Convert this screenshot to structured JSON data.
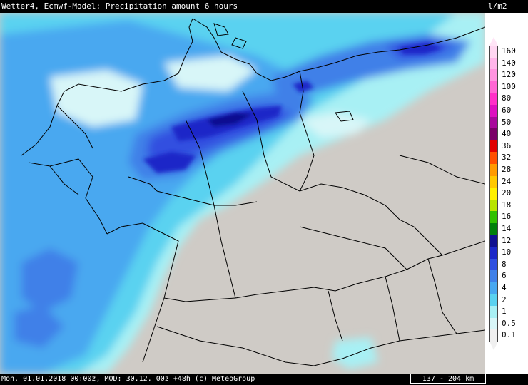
{
  "header": {
    "title": "Wetter4, Ecmwf-Model: Precipitation amount 6 hours",
    "unit": "l/m2"
  },
  "footer": {
    "info": "Mon, 01.01.2018 00:00z, MOD: 30.12. 00z +48h (c) MeteoGroup",
    "scale": "137 - 204 km"
  },
  "legend": {
    "levels": [
      {
        "label": "160",
        "color": "#ffd6f2"
      },
      {
        "label": "140",
        "color": "#ffb5ea"
      },
      {
        "label": "120",
        "color": "#ff94e0"
      },
      {
        "label": "100",
        "color": "#ff66d4"
      },
      {
        "label": "80",
        "color": "#ff30c8"
      },
      {
        "label": "60",
        "color": "#dd10c0"
      },
      {
        "label": "50",
        "color": "#a8089c"
      },
      {
        "label": "40",
        "color": "#7a0068"
      },
      {
        "label": "36",
        "color": "#e00000"
      },
      {
        "label": "32",
        "color": "#ff5000"
      },
      {
        "label": "28",
        "color": "#ff9a00"
      },
      {
        "label": "24",
        "color": "#ffc800"
      },
      {
        "label": "20",
        "color": "#fff000"
      },
      {
        "label": "18",
        "color": "#b8e400"
      },
      {
        "label": "16",
        "color": "#30c000"
      },
      {
        "label": "14",
        "color": "#00800a"
      },
      {
        "label": "12",
        "color": "#101090"
      },
      {
        "label": "10",
        "color": "#1c28c8"
      },
      {
        "label": "8",
        "color": "#3050e0"
      },
      {
        "label": "6",
        "color": "#4080e8"
      },
      {
        "label": "4",
        "color": "#48a8f0"
      },
      {
        "label": "2",
        "color": "#5ad2f0"
      },
      {
        "label": "1",
        "color": "#a8f0f4"
      },
      {
        "label": "0.5",
        "color": "#d8f6f8"
      },
      {
        "label": "0.1",
        "color": "#f0f0f0"
      }
    ]
  },
  "colors": {
    "no_precip": "#cfcbc6",
    "light": "#d8f6f8",
    "p1": "#a8f0f4",
    "p2": "#5ad2f0",
    "p4": "#48a8f0",
    "p6": "#4080e8",
    "p8": "#3050e0",
    "p10": "#1c28c8",
    "p12": "#101090",
    "border": "#000000"
  }
}
